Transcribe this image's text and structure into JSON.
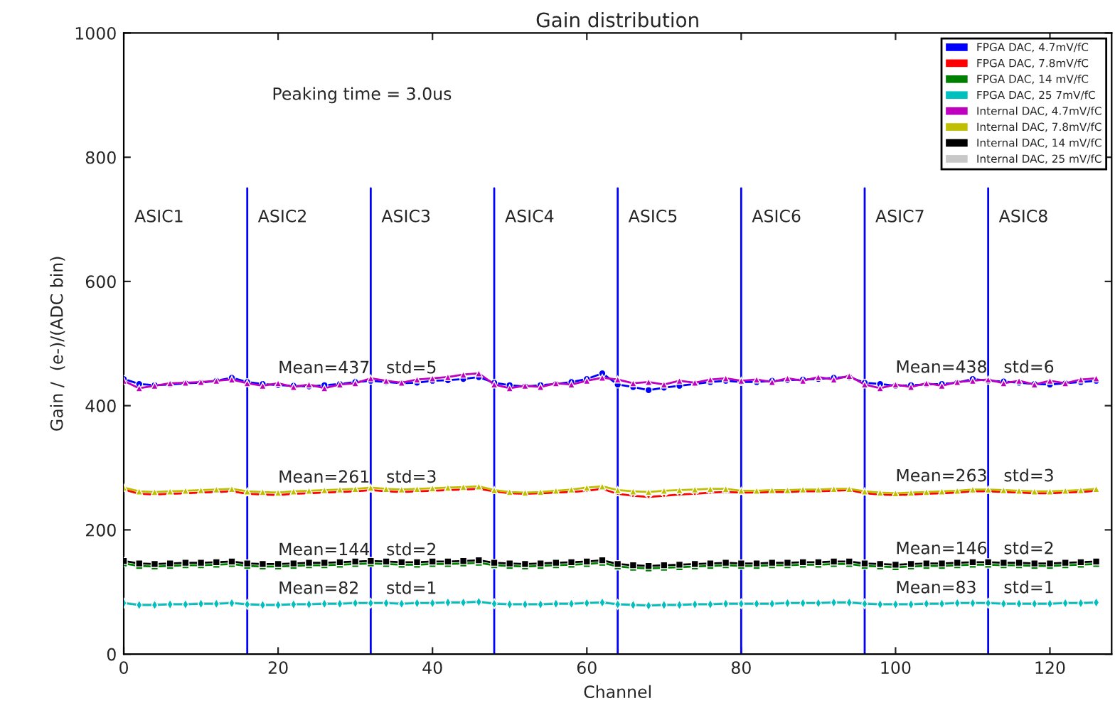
{
  "chart_data": {
    "type": "line",
    "title": "Gain distribution",
    "xlabel": "Channel",
    "ylabel": "Gain /  (e-)/(ADC bin)",
    "x": [
      0,
      2,
      4,
      6,
      8,
      10,
      12,
      14,
      16,
      18,
      20,
      22,
      24,
      26,
      28,
      30,
      32,
      34,
      36,
      38,
      40,
      42,
      44,
      46,
      48,
      50,
      52,
      54,
      56,
      58,
      60,
      62,
      64,
      66,
      68,
      70,
      72,
      74,
      76,
      78,
      80,
      82,
      84,
      86,
      88,
      90,
      92,
      94,
      96,
      98,
      100,
      102,
      104,
      106,
      108,
      110,
      112,
      114,
      116,
      118,
      120,
      122,
      124,
      126
    ],
    "xlim": [
      0,
      128
    ],
    "ylim": [
      0,
      1000
    ],
    "xticks": [
      0,
      20,
      40,
      60,
      80,
      100,
      120
    ],
    "yticks": [
      0,
      200,
      400,
      600,
      800,
      1000
    ],
    "grid": false,
    "legend": "upper right",
    "line_style": "solid",
    "series": [
      {
        "name": "Internal DAC, 25 mV/fC",
        "color": "#c8c8c8",
        "marker": "cross",
        "values": [
          83,
          80,
          80,
          81,
          81,
          82,
          82,
          83,
          81,
          80,
          80,
          81,
          81,
          82,
          82,
          83,
          83,
          83,
          82,
          83,
          83,
          84,
          84,
          85,
          82,
          81,
          81,
          81,
          82,
          82,
          83,
          84,
          81,
          80,
          79,
          80,
          80,
          81,
          81,
          82,
          82,
          82,
          82,
          83,
          83,
          83,
          84,
          84,
          82,
          81,
          81,
          81,
          82,
          82,
          83,
          83,
          83,
          82,
          82,
          82,
          82,
          83,
          83,
          84
        ]
      },
      {
        "name": "FPGA DAC, 4.7mV/fC",
        "color": "#0000ff",
        "marker": "circle",
        "values": [
          443,
          435,
          433,
          434,
          436,
          437,
          440,
          445,
          438,
          435,
          433,
          432,
          431,
          433,
          435,
          438,
          440,
          438,
          436,
          437,
          440,
          441,
          443,
          446,
          437,
          433,
          431,
          433,
          435,
          438,
          443,
          452,
          434,
          430,
          425,
          429,
          432,
          435,
          438,
          440,
          438,
          438,
          440,
          441,
          442,
          443,
          445,
          446,
          437,
          435,
          432,
          433,
          434,
          435,
          437,
          443,
          440,
          439,
          437,
          435,
          434,
          436,
          438,
          440
        ]
      },
      {
        "name": "FPGA DAC, 7.8mV/fC",
        "color": "#ff0000",
        "marker": "star",
        "values": [
          265,
          258,
          257,
          258,
          259,
          260,
          261,
          262,
          258,
          257,
          256,
          258,
          259,
          260,
          261,
          262,
          264,
          262,
          261,
          262,
          263,
          264,
          265,
          266,
          262,
          259,
          258,
          259,
          260,
          261,
          263,
          266,
          258,
          255,
          253,
          255,
          257,
          258,
          260,
          261,
          260,
          260,
          261,
          261,
          262,
          262,
          263,
          264,
          259,
          257,
          256,
          257,
          258,
          259,
          260,
          262,
          262,
          261,
          260,
          259,
          259,
          260,
          261,
          263
        ]
      },
      {
        "name": "FPGA DAC, 14 mV/fC",
        "color": "#008000",
        "marker": "square",
        "values": [
          146,
          142,
          141,
          142,
          143,
          143,
          144,
          145,
          142,
          141,
          141,
          142,
          143,
          143,
          144,
          145,
          146,
          145,
          144,
          144,
          145,
          145,
          146,
          147,
          143,
          142,
          141,
          142,
          143,
          144,
          145,
          147,
          141,
          139,
          138,
          139,
          140,
          141,
          142,
          143,
          142,
          142,
          143,
          143,
          144,
          144,
          145,
          145,
          142,
          141,
          140,
          141,
          142,
          142,
          143,
          144,
          144,
          143,
          143,
          142,
          142,
          143,
          144,
          145
        ]
      },
      {
        "name": "FPGA DAC, 25 7mV/fC",
        "color": "#00bfbf",
        "marker": "diamond",
        "values": [
          82,
          79,
          79,
          80,
          80,
          81,
          81,
          82,
          80,
          79,
          79,
          80,
          80,
          81,
          81,
          82,
          82,
          82,
          81,
          82,
          82,
          83,
          83,
          84,
          81,
          80,
          80,
          80,
          81,
          81,
          82,
          83,
          80,
          79,
          78,
          79,
          79,
          80,
          80,
          81,
          81,
          81,
          81,
          82,
          82,
          82,
          83,
          83,
          81,
          80,
          80,
          80,
          81,
          81,
          82,
          82,
          82,
          81,
          81,
          81,
          81,
          82,
          82,
          83
        ]
      },
      {
        "name": "Internal DAC, 4.7mV/fC",
        "color": "#bf00bf",
        "marker": "triangle",
        "values": [
          440,
          428,
          432,
          436,
          437,
          438,
          440,
          442,
          436,
          432,
          436,
          430,
          434,
          428,
          434,
          436,
          444,
          440,
          437,
          442,
          444,
          446,
          450,
          452,
          434,
          428,
          432,
          430,
          436,
          434,
          440,
          445,
          442,
          436,
          438,
          434,
          440,
          437,
          442,
          444,
          440,
          442,
          438,
          444,
          440,
          446,
          442,
          448,
          434,
          428,
          434,
          430,
          436,
          432,
          438,
          440,
          442,
          436,
          440,
          434,
          440,
          436,
          442,
          444
        ]
      },
      {
        "name": "Internal DAC, 7.8mV/fC",
        "color": "#bfbf00",
        "marker": "triangle",
        "values": [
          268,
          262,
          261,
          262,
          263,
          264,
          265,
          266,
          262,
          261,
          260,
          262,
          263,
          264,
          265,
          266,
          268,
          266,
          265,
          266,
          267,
          268,
          269,
          270,
          264,
          261,
          260,
          261,
          263,
          265,
          268,
          270,
          264,
          262,
          261,
          263,
          264,
          265,
          266,
          266,
          263,
          263,
          264,
          264,
          265,
          265,
          266,
          266,
          262,
          260,
          259,
          260,
          261,
          262,
          263,
          265,
          265,
          264,
          263,
          262,
          262,
          263,
          264,
          266
        ]
      },
      {
        "name": "Internal DAC, 14 mV/fC",
        "color": "#000000",
        "marker": "square",
        "values": [
          150,
          146,
          145,
          146,
          147,
          147,
          148,
          149,
          146,
          145,
          145,
          146,
          147,
          147,
          148,
          149,
          150,
          149,
          148,
          148,
          149,
          149,
          150,
          151,
          147,
          146,
          145,
          146,
          147,
          148,
          149,
          151,
          145,
          143,
          142,
          143,
          144,
          145,
          146,
          147,
          146,
          146,
          147,
          147,
          148,
          148,
          149,
          149,
          146,
          145,
          144,
          145,
          146,
          146,
          147,
          148,
          148,
          147,
          147,
          146,
          146,
          147,
          148,
          149
        ]
      }
    ],
    "ref_lines": [
      {
        "axis": "x",
        "value": 16,
        "color": "#0000ff"
      },
      {
        "axis": "x",
        "value": 32,
        "color": "#0000ff"
      },
      {
        "axis": "x",
        "value": 48,
        "color": "#0000ff"
      },
      {
        "axis": "x",
        "value": 64,
        "color": "#0000ff"
      },
      {
        "axis": "x",
        "value": 80,
        "color": "#0000ff"
      },
      {
        "axis": "x",
        "value": 96,
        "color": "#0000ff"
      },
      {
        "axis": "x",
        "value": 112,
        "color": "#0000ff"
      }
    ],
    "annotations": [
      "Peaking time = 3.0us",
      "ASIC1",
      "ASIC2",
      "ASIC3",
      "ASIC4",
      "ASIC5",
      "ASIC6",
      "ASIC7",
      "ASIC8",
      {
        "text": "Mean=437",
        "x": 20,
        "y": 437
      },
      {
        "text": "std=5",
        "x": 34,
        "y": 437
      },
      {
        "text": "Mean=261",
        "x": 20,
        "y": 261
      },
      {
        "text": "std=3",
        "x": 34,
        "y": 261
      },
      {
        "text": "Mean=144",
        "x": 20,
        "y": 144
      },
      {
        "text": "std=2",
        "x": 34,
        "y": 144
      },
      {
        "text": "Mean=82",
        "x": 20,
        "y": 82
      },
      {
        "text": "std=1",
        "x": 34,
        "y": 82
      },
      {
        "text": "Mean=438",
        "x": 100,
        "y": 438
      },
      {
        "text": "std=6",
        "x": 114,
        "y": 438
      },
      {
        "text": "Mean=263",
        "x": 100,
        "y": 263
      },
      {
        "text": "std=3",
        "x": 114,
        "y": 263
      },
      {
        "text": "Mean=146",
        "x": 100,
        "y": 146
      },
      {
        "text": "std=2",
        "x": 114,
        "y": 146
      },
      {
        "text": "Mean=83",
        "x": 100,
        "y": 83
      },
      {
        "text": "std=1",
        "x": 114,
        "y": 83
      }
    ]
  }
}
